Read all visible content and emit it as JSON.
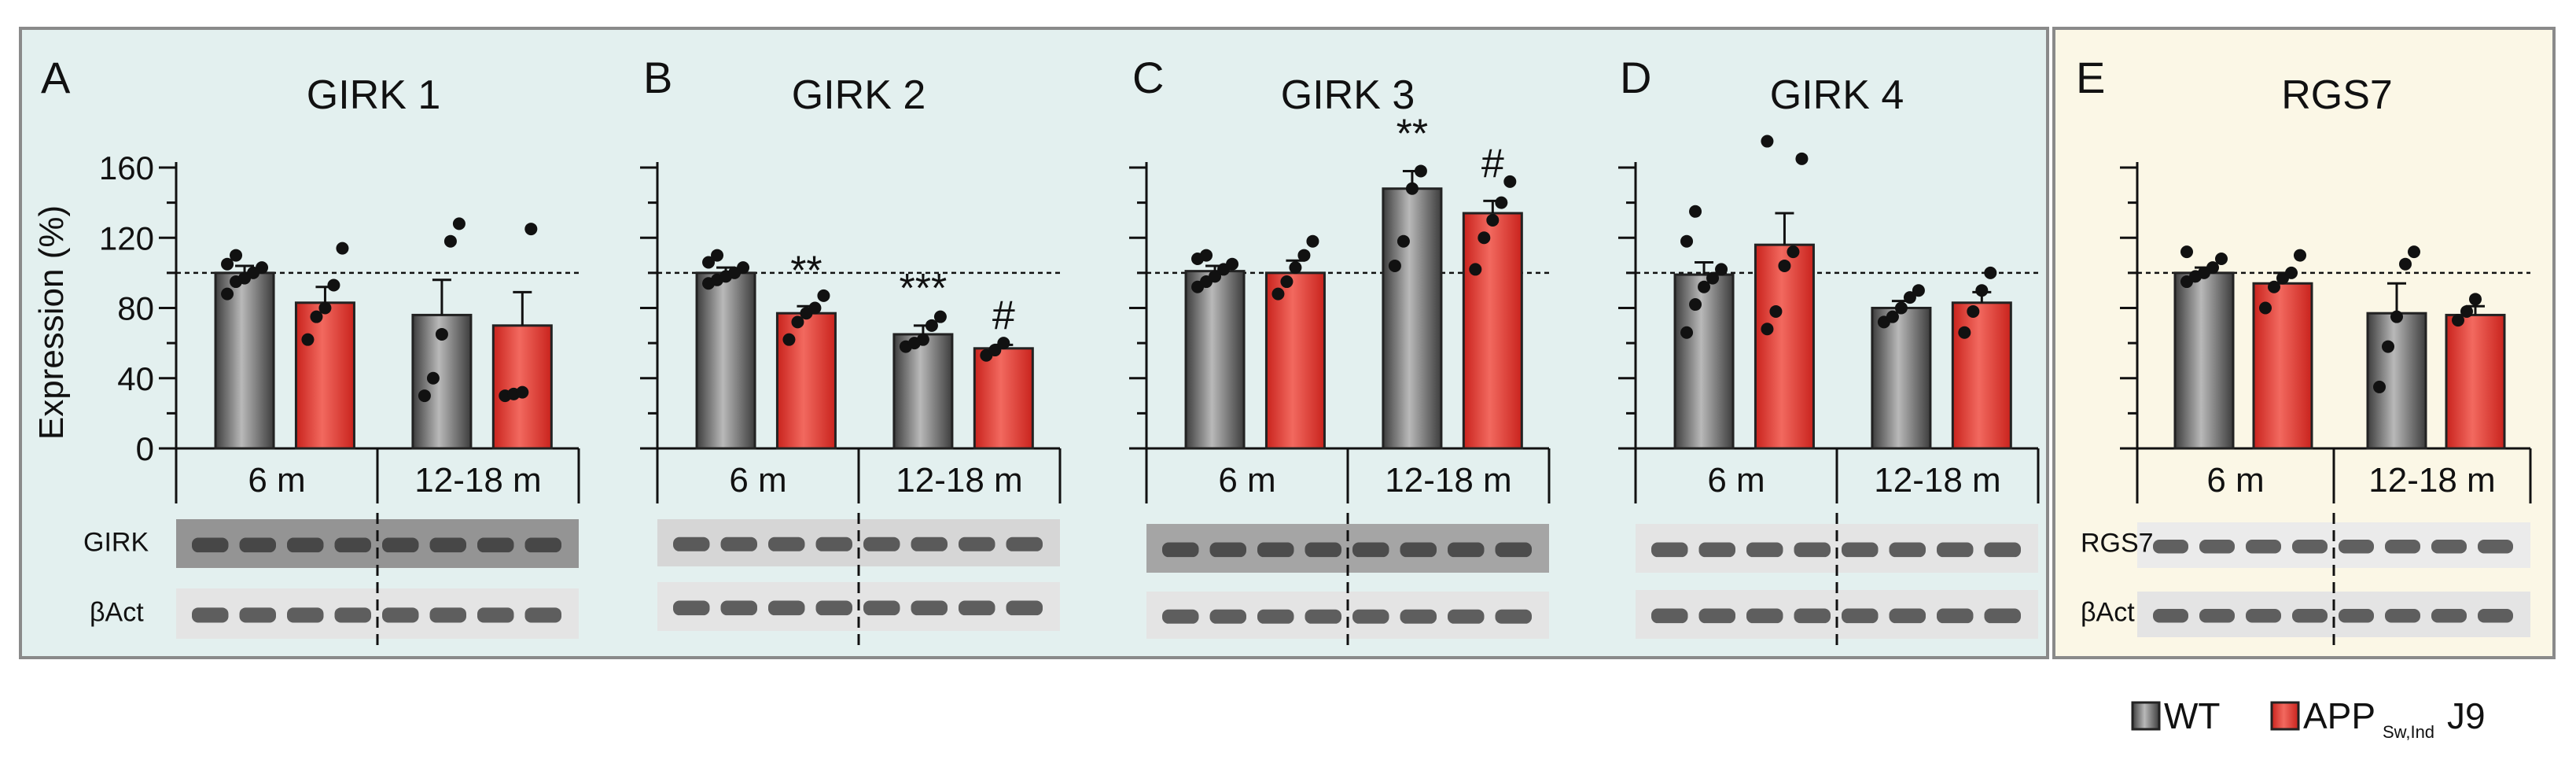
{
  "colors": {
    "wt_bar": "#6a6a6a",
    "app_bar": "#e8403a",
    "panel_bg_girk": "#e3f0ef",
    "panel_bg_rgs7": "#fbf7e6",
    "panel_border": "#8a8a8a"
  },
  "legend": {
    "wt": "WT",
    "app": "APP",
    "app_sub": "Sw,Ind",
    "app_suffix": "J9"
  },
  "y_axis": {
    "label": "Expression (%)",
    "ticks": [
      "160",
      "120",
      "80",
      "40",
      "0"
    ],
    "range": [
      0,
      160
    ],
    "reference_line": 100
  },
  "age_groups": [
    "6 m",
    "12-18 m"
  ],
  "chart_data": [
    {
      "type": "bar",
      "panel": "A",
      "title": "GIRK 1",
      "ylim": [
        0,
        160
      ],
      "categories": [
        "6 m",
        "12-18 m"
      ],
      "series": [
        {
          "name": "WT",
          "values": [
            100,
            76
          ],
          "sem": [
            4,
            20
          ],
          "points": [
            [
              88,
              95,
              97,
              100,
              103,
              105,
              110
            ],
            [
              30,
              40,
              65,
              118,
              128
            ]
          ]
        },
        {
          "name": "APP",
          "values": [
            83,
            70
          ],
          "sem": [
            9,
            19
          ],
          "points": [
            [
              62,
              75,
              80,
              93,
              114
            ],
            [
              30,
              31,
              32,
              125
            ]
          ]
        }
      ],
      "annotations": [],
      "blot_labels": [
        "GIRK",
        "βAct"
      ]
    },
    {
      "type": "bar",
      "panel": "B",
      "title": "GIRK 2",
      "ylim": [
        0,
        160
      ],
      "categories": [
        "6 m",
        "12-18 m"
      ],
      "series": [
        {
          "name": "WT",
          "values": [
            100,
            65
          ],
          "sem": [
            3,
            5
          ],
          "points": [
            [
              94,
              96,
              98,
              100,
              103,
              106,
              110
            ],
            [
              58,
              60,
              62,
              70,
              75
            ]
          ]
        },
        {
          "name": "APP",
          "values": [
            77,
            57
          ],
          "sem": [
            4,
            2
          ],
          "points": [
            [
              62,
              72,
              77,
              80,
              87
            ],
            [
              53,
              56,
              60
            ]
          ]
        }
      ],
      "annotations": [
        "**",
        "***",
        "#"
      ],
      "blot_labels": []
    },
    {
      "type": "bar",
      "panel": "C",
      "title": "GIRK 3",
      "ylim": [
        0,
        160
      ],
      "categories": [
        "6 m",
        "12-18 m"
      ],
      "series": [
        {
          "name": "WT",
          "values": [
            101,
            148
          ],
          "sem": [
            3,
            10
          ],
          "points": [
            [
              92,
              95,
              98,
              102,
              105,
              108,
              110
            ],
            [
              104,
              118,
              148,
              158
            ]
          ]
        },
        {
          "name": "APP",
          "values": [
            100,
            134
          ],
          "sem": [
            7,
            7
          ],
          "points": [
            [
              88,
              95,
              103,
              110,
              118
            ],
            [
              102,
              120,
              130,
              140,
              152
            ]
          ]
        }
      ],
      "annotations": [
        "**",
        "#"
      ],
      "blot_labels": []
    },
    {
      "type": "bar",
      "panel": "D",
      "title": "GIRK 4",
      "ylim": [
        0,
        160
      ],
      "categories": [
        "6 m",
        "12-18 m"
      ],
      "series": [
        {
          "name": "WT",
          "values": [
            99,
            80
          ],
          "sem": [
            7,
            4
          ],
          "points": [
            [
              66,
              82,
              92,
              97,
              102,
              118,
              135
            ],
            [
              72,
              75,
              80,
              86,
              90
            ]
          ]
        },
        {
          "name": "APP",
          "values": [
            116,
            83
          ],
          "sem": [
            18,
            6
          ],
          "points": [
            [
              68,
              78,
              104,
              112,
              165,
              175
            ],
            [
              66,
              78,
              90,
              100
            ]
          ]
        }
      ],
      "annotations": [],
      "blot_labels": []
    },
    {
      "type": "bar",
      "panel": "E",
      "title": "RGS7",
      "ylim": [
        0,
        160
      ],
      "categories": [
        "6 m",
        "12-18 m"
      ],
      "series": [
        {
          "name": "WT",
          "values": [
            100,
            77
          ],
          "sem": [
            3,
            17
          ],
          "points": [
            [
              95,
              98,
              100,
              103,
              108,
              112
            ],
            [
              35,
              58,
              75,
              105,
              112
            ]
          ]
        },
        {
          "name": "APP",
          "values": [
            94,
            76
          ],
          "sem": [
            6,
            5
          ],
          "points": [
            [
              80,
              92,
              97,
              100,
              110
            ],
            [
              73,
              78,
              85
            ]
          ]
        }
      ],
      "annotations": [],
      "blot_labels": [
        "RGS7",
        "βAct"
      ]
    }
  ]
}
